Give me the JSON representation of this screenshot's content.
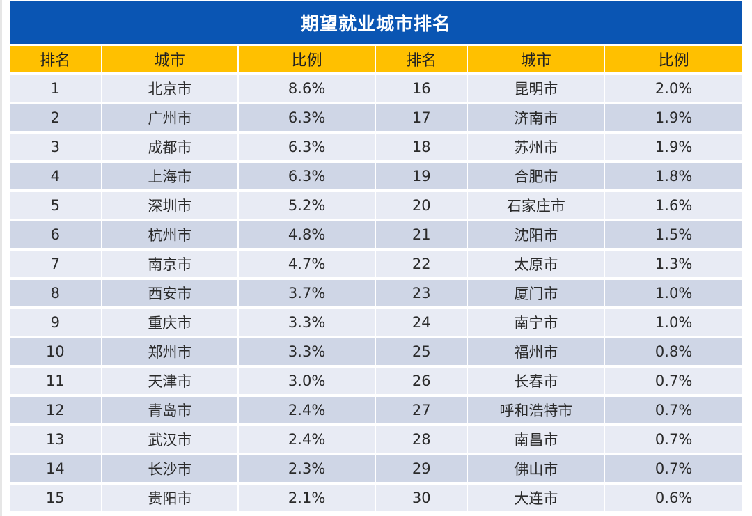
{
  "title": "期望就业城市排名",
  "headers": [
    "排名",
    "城市",
    "比例",
    "排名",
    "城市",
    "比例"
  ],
  "rows": [
    [
      "1",
      "北京市",
      "8.6%",
      "16",
      "昆明市",
      "2.0%"
    ],
    [
      "2",
      "广州市",
      "6.3%",
      "17",
      "济南市",
      "1.9%"
    ],
    [
      "3",
      "成都市",
      "6.3%",
      "18",
      "苏州市",
      "1.9%"
    ],
    [
      "4",
      "上海市",
      "6.3%",
      "19",
      "合肥市",
      "1.8%"
    ],
    [
      "5",
      "深圳市",
      "5.2%",
      "20",
      "石家庄市",
      "1.6%"
    ],
    [
      "6",
      "杭州市",
      "4.8%",
      "21",
      "沈阳市",
      "1.5%"
    ],
    [
      "7",
      "南京市",
      "4.7%",
      "22",
      "太原市",
      "1.3%"
    ],
    [
      "8",
      "西安市",
      "3.7%",
      "23",
      "厦门市",
      "1.0%"
    ],
    [
      "9",
      "重庆市",
      "3.3%",
      "24",
      "南宁市",
      "1.0%"
    ],
    [
      "10",
      "郑州市",
      "3.3%",
      "25",
      "福州市",
      "0.8%"
    ],
    [
      "11",
      "天津市",
      "3.0%",
      "26",
      "长春市",
      "0.7%"
    ],
    [
      "12",
      "青岛市",
      "2.4%",
      "27",
      "呼和浩特市",
      "0.7%"
    ],
    [
      "13",
      "武汉市",
      "2.4%",
      "28",
      "南昌市",
      "0.7%"
    ],
    [
      "14",
      "长沙市",
      "2.3%",
      "29",
      "佛山市",
      "0.7%"
    ],
    [
      "15",
      "贵阳市",
      "2.1%",
      "30",
      "大连市",
      "0.6%"
    ]
  ],
  "colors": {
    "title_bg": "#0a55b3",
    "header_bg": "#ffc000",
    "row_odd": "#e8ebf4",
    "row_even": "#cfd6e6"
  }
}
